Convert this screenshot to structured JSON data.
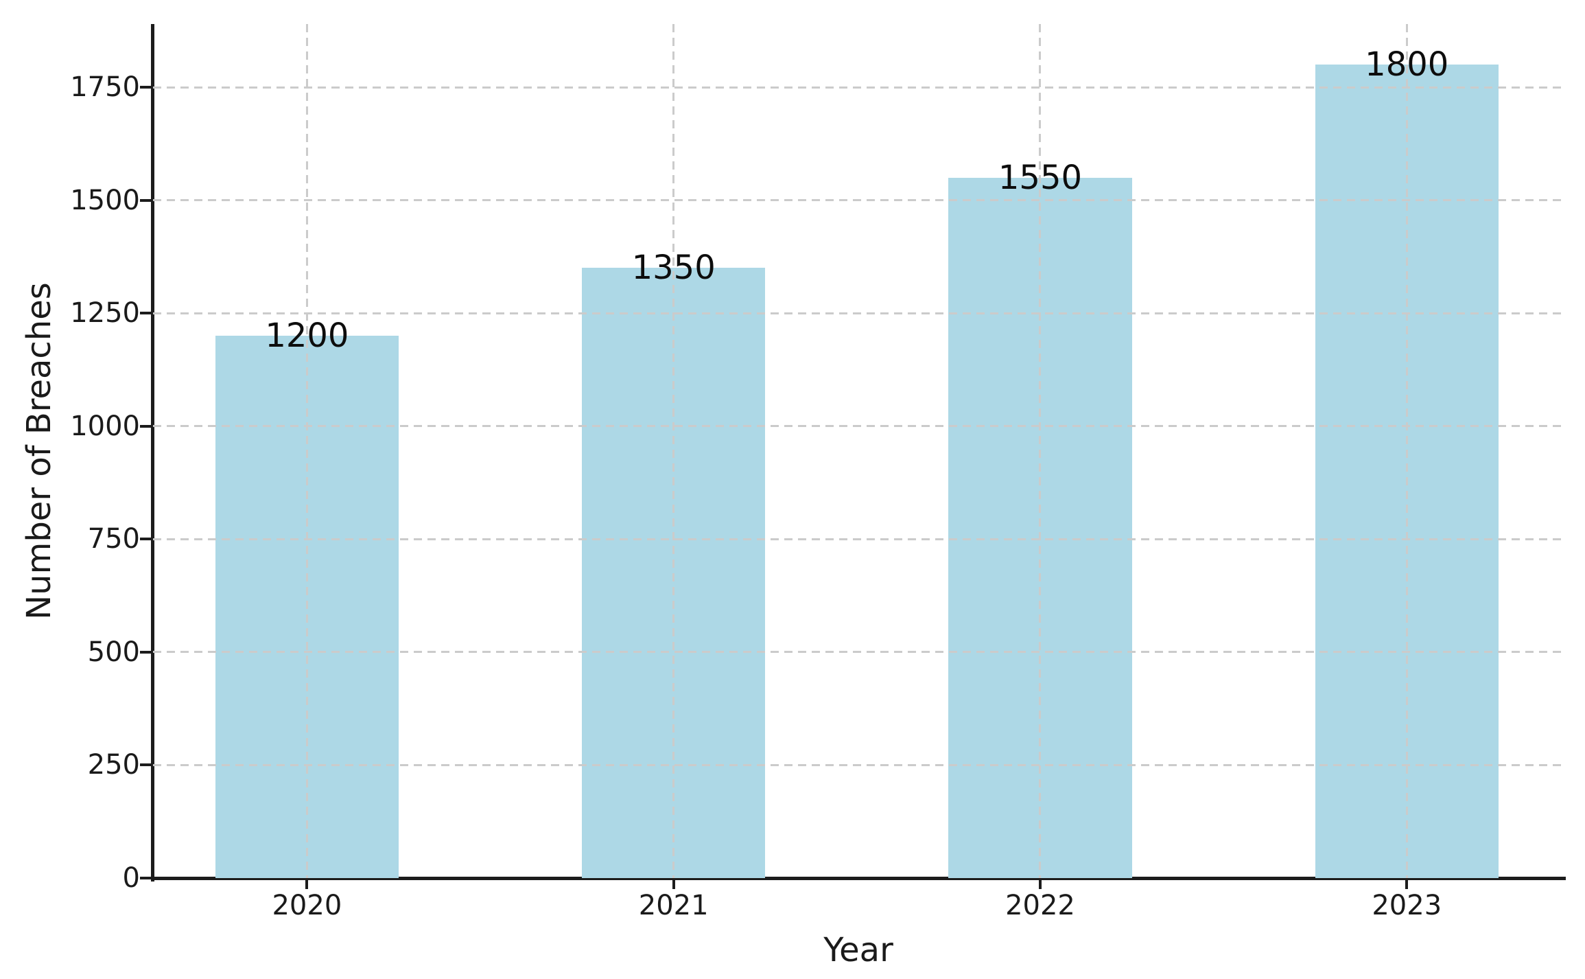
{
  "chart_data": {
    "type": "bar",
    "title": "",
    "xlabel": "Year",
    "ylabel": "Number of Breaches",
    "categories": [
      "2020",
      "2021",
      "2022",
      "2023"
    ],
    "values": [
      1200,
      1350,
      1550,
      1800
    ],
    "bar_labels": [
      "1200",
      "1350",
      "1550",
      "1800"
    ],
    "yticks": [
      0,
      250,
      500,
      750,
      1000,
      1250,
      1500,
      1750
    ],
    "ylim": [
      0,
      1890
    ],
    "xlim": [
      -0.42,
      3.43
    ],
    "bar_width": 0.5,
    "bar_color": "#ADD8E6",
    "grid": true,
    "grid_style": "dashed",
    "grid_color": "#cbcbcb",
    "axis_color": "#1c1c1c",
    "text_color": "#1a1a1a",
    "legend_position": "none"
  }
}
